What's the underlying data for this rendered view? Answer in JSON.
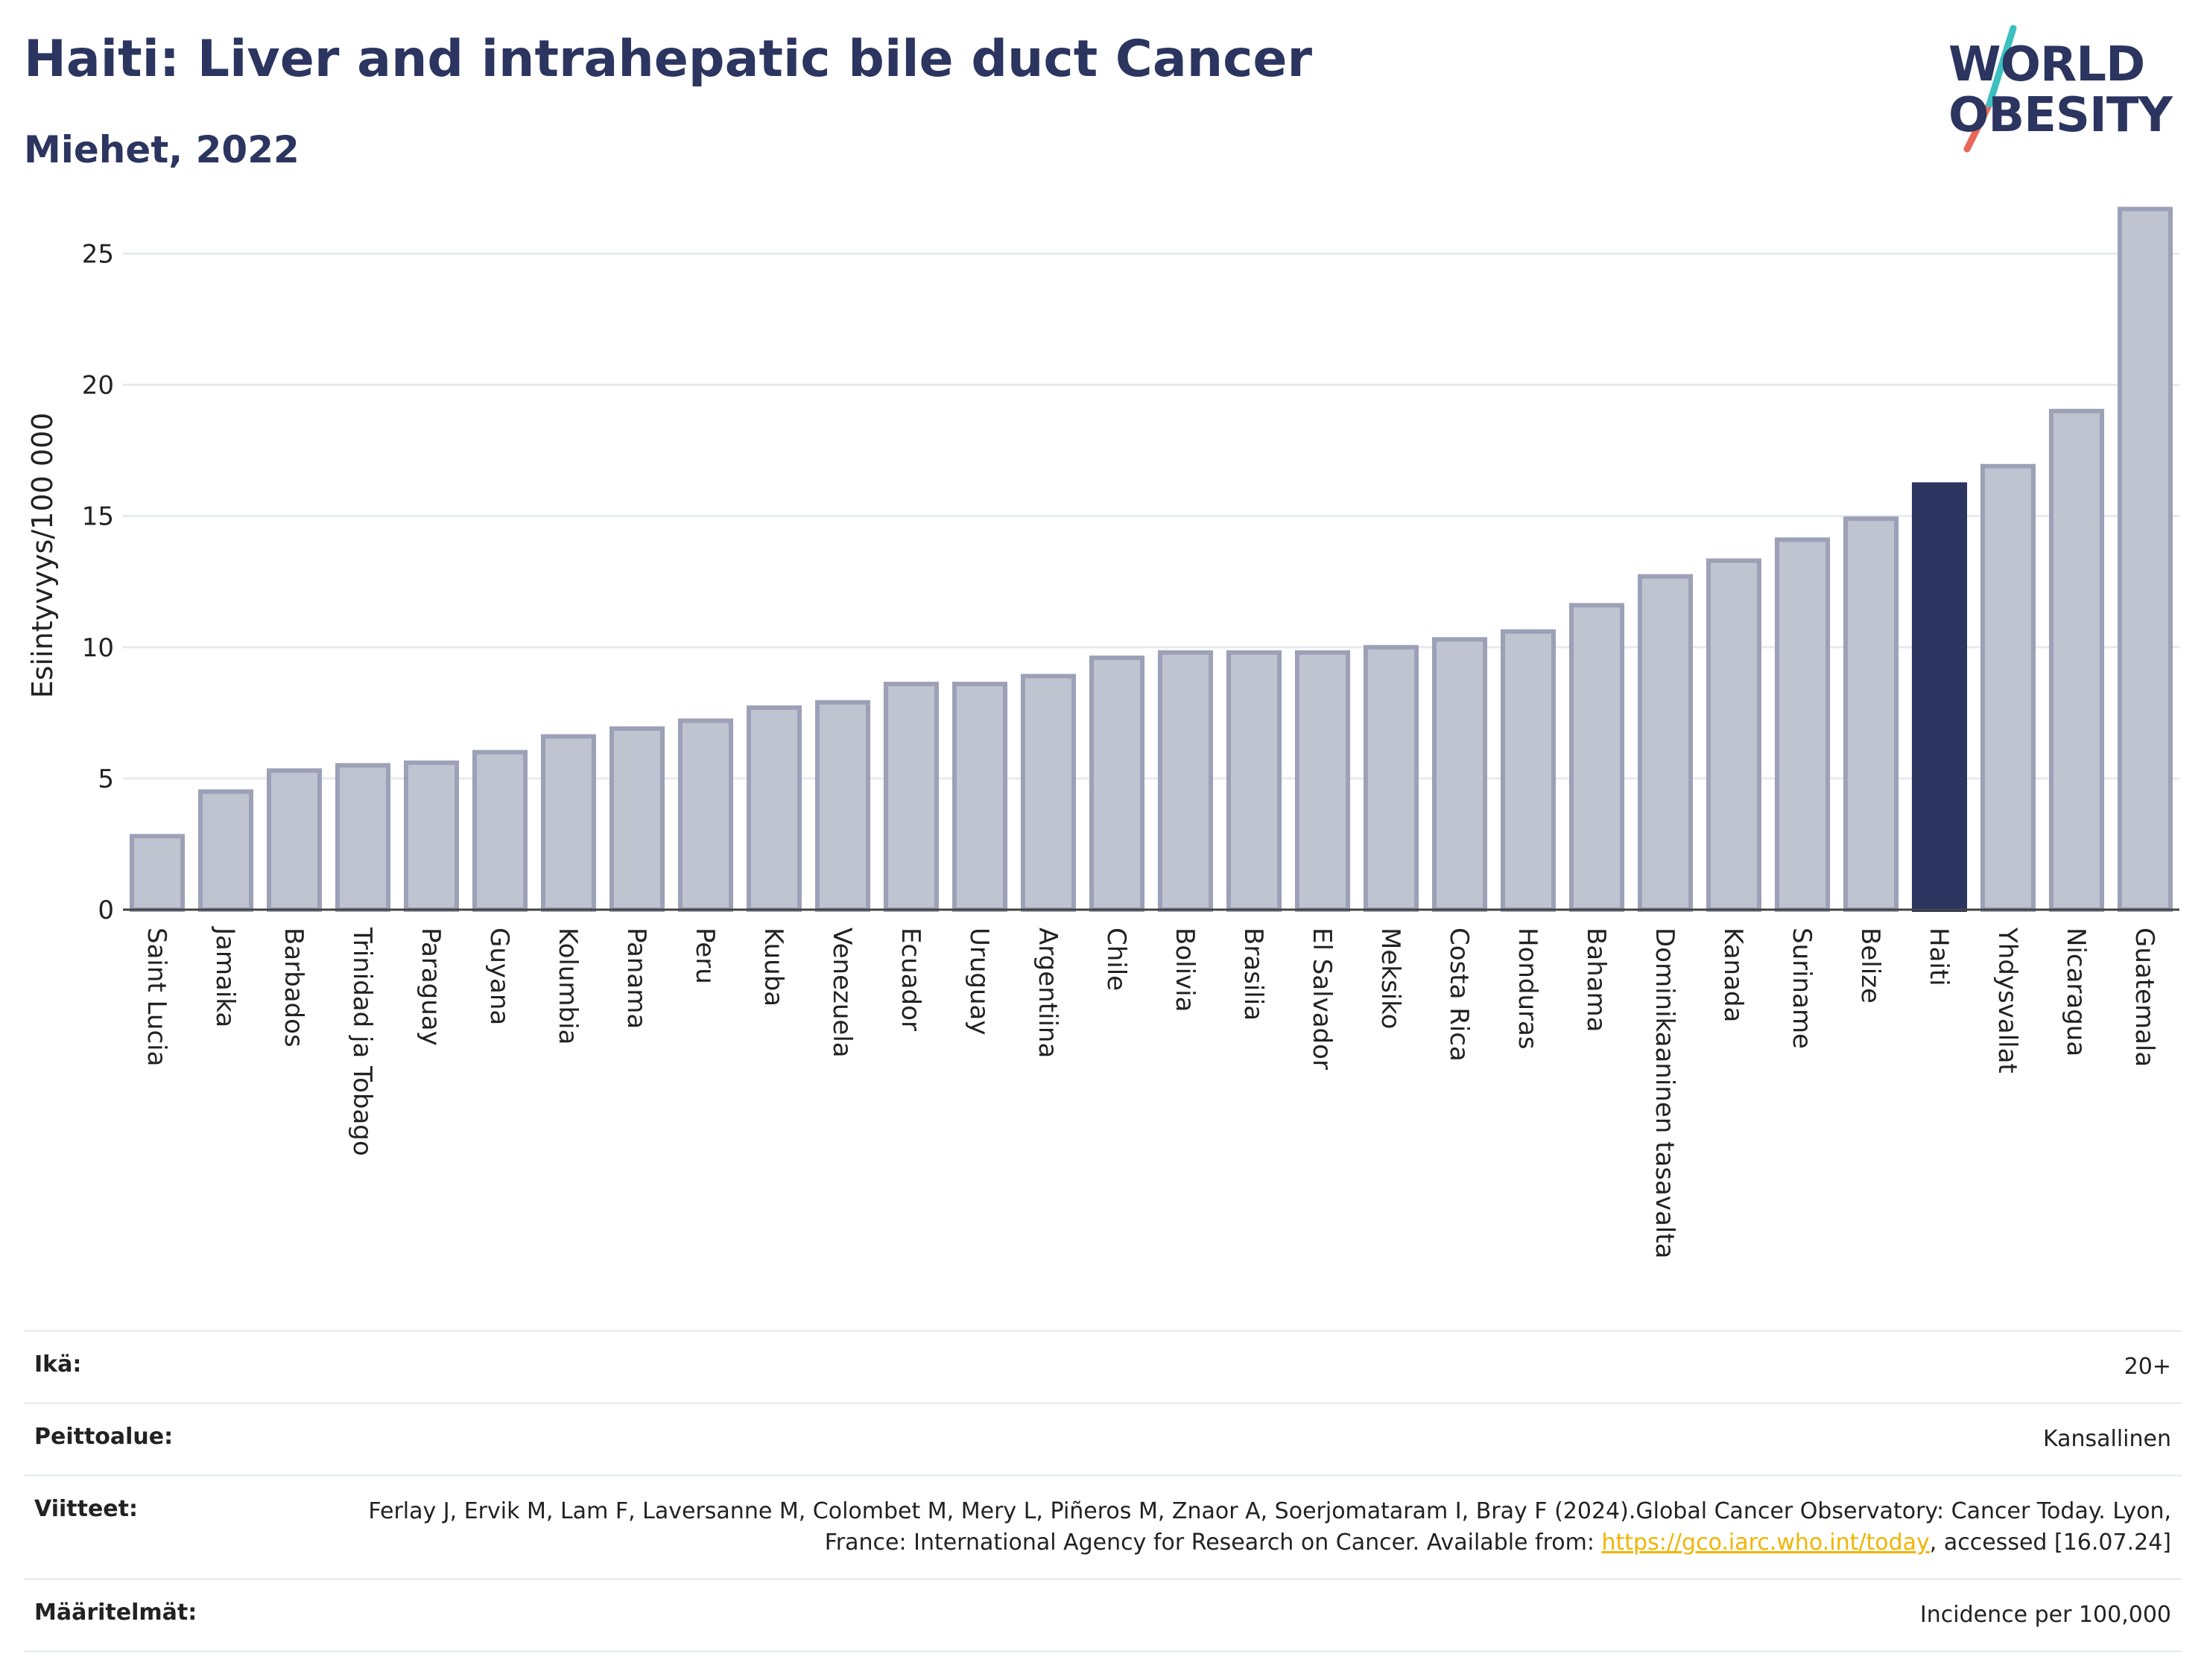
{
  "header": {
    "title": "Haiti: Liver and intrahepatic bile duct Cancer",
    "subtitle": "Miehet, 2022"
  },
  "logo": {
    "line1": "WORLD",
    "line2": "OBESITY",
    "icon": "world-obesity-logo"
  },
  "colors": {
    "highlight": "#2b3560",
    "bar": "#c0c3d0",
    "bar_border": "#9ca1b7",
    "grid": "#e8eaf0"
  },
  "chart_data": {
    "type": "bar",
    "ylabel": "Esiintyvyys/100 000",
    "ylim": [
      0,
      27
    ],
    "yticks": [
      0,
      5,
      10,
      15,
      20,
      25
    ],
    "highlight": "Haiti",
    "categories": [
      "Saint Lucia",
      "Jamaika",
      "Barbados",
      "Trinidad ja Tobago",
      "Paraguay",
      "Guyana",
      "Kolumbia",
      "Panama",
      "Peru",
      "Kuuba",
      "Venezuela",
      "Ecuador",
      "Uruguay",
      "Argentiina",
      "Chile",
      "Bolivia",
      "Brasilia",
      "El Salvador",
      "Meksiko",
      "Costa Rica",
      "Honduras",
      "Bahama",
      "Dominikaaninen tasavalta",
      "Kanada",
      "Suriname",
      "Belize",
      "Haiti",
      "Yhdysvallat",
      "Nicaragua",
      "Guatemala"
    ],
    "values": [
      2.8,
      4.5,
      5.3,
      5.5,
      5.6,
      6.0,
      6.6,
      6.9,
      7.2,
      7.7,
      7.9,
      8.6,
      8.6,
      8.9,
      9.6,
      9.8,
      9.8,
      9.8,
      10.0,
      10.3,
      10.6,
      11.6,
      12.7,
      13.3,
      14.1,
      14.9,
      16.2,
      16.9,
      19.0,
      26.7
    ]
  },
  "info_table": [
    {
      "key": "Ikä:",
      "value": "20+"
    },
    {
      "key": "Peittoalue:",
      "value": "Kansallinen"
    },
    {
      "key": "Viitteet:",
      "value_pre": "Ferlay J, Ervik M, Lam F, Laversanne M, Colombet M, Mery L, Piñeros M, Znaor A, Soerjomataram I, Bray F (2024).Global Cancer Observatory: Cancer Today. Lyon, France: International Agency for Research on Cancer. Available from: ",
      "link": "https://gco.iarc.who.int/today",
      "value_post": ", accessed [16.07.24]"
    },
    {
      "key": "Määritelmät:",
      "value": "Incidence per 100,000"
    }
  ]
}
